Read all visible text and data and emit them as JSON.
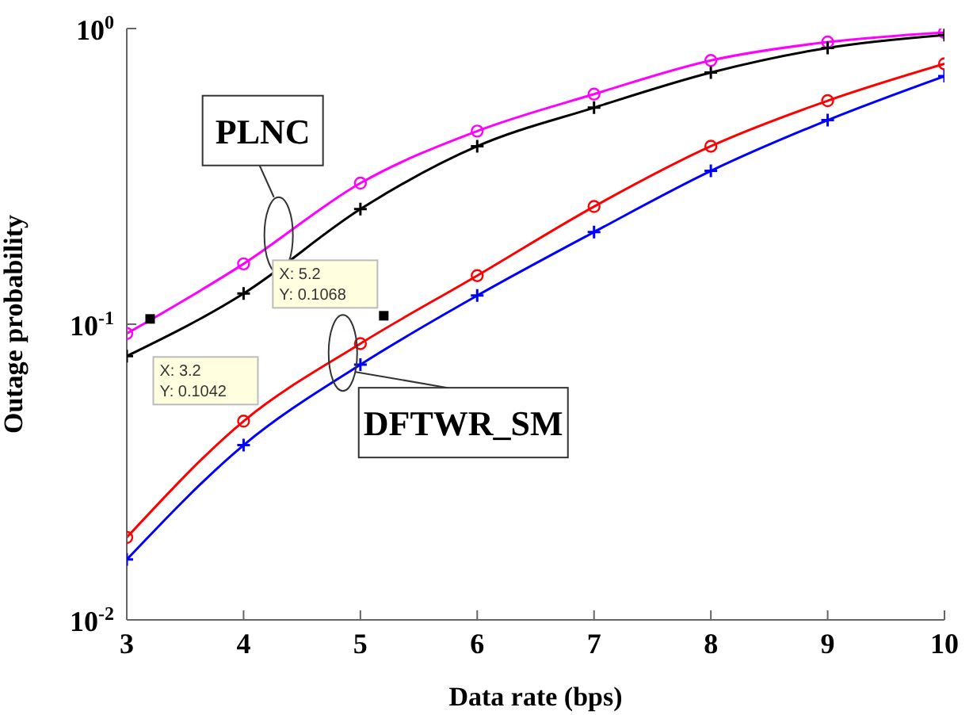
{
  "chart_data": {
    "type": "line",
    "xlabel": "Data rate (bps)",
    "ylabel": "Outage probability",
    "log": "y",
    "grid": false,
    "legend": false,
    "x": [
      3,
      4,
      5,
      6,
      7,
      8,
      9,
      10
    ],
    "xlim": [
      3,
      10
    ],
    "xticks": [
      3,
      4,
      5,
      6,
      7,
      8,
      9,
      10
    ],
    "ylim": [
      0.01,
      1
    ],
    "yticks": [
      {
        "value": 0.01,
        "label": "10$^{-2}$"
      },
      {
        "value": 0.1,
        "label": "10$^{-1}$"
      },
      {
        "value": 1,
        "label": "10$^{0}$"
      }
    ],
    "series": [
      {
        "color": "#ff00ff",
        "marker": "circle",
        "values": [
          0.093,
          0.16,
          0.3,
          0.45,
          0.6,
          0.78,
          0.9,
          0.97
        ]
      },
      {
        "color": "#000000",
        "marker": "cross",
        "values": [
          0.078,
          0.127,
          0.245,
          0.4,
          0.54,
          0.71,
          0.86,
          0.95
        ]
      },
      {
        "color": "#ff0000",
        "marker": "circle",
        "values": [
          0.019,
          0.047,
          0.086,
          0.146,
          0.25,
          0.4,
          0.57,
          0.76
        ]
      },
      {
        "color": "#0000ff",
        "marker": "cross",
        "values": [
          0.016,
          0.039,
          0.073,
          0.125,
          0.205,
          0.33,
          0.49,
          0.69
        ]
      }
    ],
    "annotations": [
      {
        "text": "PLNC",
        "x": 4.3,
        "y": 0.2
      },
      {
        "text": "DFTWR_SM",
        "x": 4.85,
        "y": 0.08
      },
      {
        "text": "X: 3.2\nY: 0.1042",
        "x": 3.2,
        "y": 0.1042
      },
      {
        "text": "X: 5.2\nY: 0.1068",
        "x": 5.2,
        "y": 0.1068
      }
    ]
  }
}
